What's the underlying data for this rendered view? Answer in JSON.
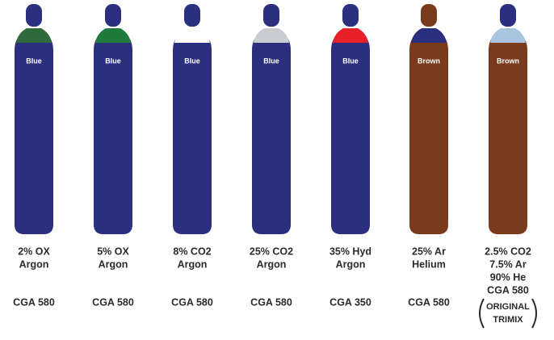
{
  "cylinders": [
    {
      "label": "Blue",
      "body_color": "#2c2f7f",
      "cap_color": "#2c2f7f",
      "shoulder_color": "#2f6a3c",
      "gas": [
        "2% OX",
        "Argon"
      ],
      "cga": "CGA 580"
    },
    {
      "label": "Blue",
      "body_color": "#2c2f7f",
      "cap_color": "#2c2f7f",
      "shoulder_color": "#1f7a3e",
      "gas": [
        "5% OX",
        "Argon"
      ],
      "cga": "CGA 580"
    },
    {
      "label": "Blue",
      "body_color": "#2c2f7f",
      "cap_color": "#2c2f7f",
      "shoulder_color": "#ffffff",
      "gas": [
        "8% CO2",
        "Argon"
      ],
      "cga": "CGA 580"
    },
    {
      "label": "Blue",
      "body_color": "#2c2f7f",
      "cap_color": "#2c2f7f",
      "shoulder_color": "#c9cdd2",
      "gas": [
        "25% CO2",
        "Argon"
      ],
      "cga": "CGA 580"
    },
    {
      "label": "Blue",
      "body_color": "#2c2f7f",
      "cap_color": "#2c2f7f",
      "shoulder_color": "#e8202a",
      "gas": [
        "35% Hyd",
        "Argon"
      ],
      "cga": "CGA 350"
    },
    {
      "label": "Brown",
      "body_color": "#7a3a1c",
      "cap_color": "#7a3a1c",
      "shoulder_color": "#2c2f7f",
      "gas": [
        "25% Ar",
        "Helium"
      ],
      "cga": "CGA 580"
    },
    {
      "label": "Brown",
      "body_color": "#7a3a1c",
      "cap_color": "#2c2f7f",
      "shoulder_color": "#a9c4de",
      "gas": [
        "2.5% CO2",
        "7.5% Ar",
        "90% He"
      ],
      "cga": "CGA 580",
      "note": [
        "ORIGINAL",
        "TRIMIX"
      ]
    }
  ]
}
